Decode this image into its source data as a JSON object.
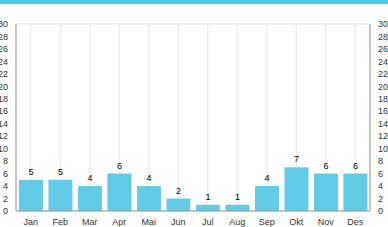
{
  "chart_data": {
    "type": "bar",
    "categories": [
      "Jan",
      "Feb",
      "Mar",
      "Apr",
      "Mai",
      "Jun",
      "Jul",
      "Aug",
      "Sep",
      "Okt",
      "Nov",
      "Des"
    ],
    "values": [
      5,
      5,
      4,
      6,
      4,
      2,
      1,
      1,
      4,
      7,
      6,
      6
    ],
    "color": "#62cbe6",
    "ylim": [
      0,
      30
    ],
    "yticks": [
      0,
      2,
      4,
      6,
      8,
      10,
      12,
      14,
      16,
      18,
      20,
      22,
      24,
      26,
      28,
      30
    ],
    "grid": true,
    "data_labels": true
  }
}
